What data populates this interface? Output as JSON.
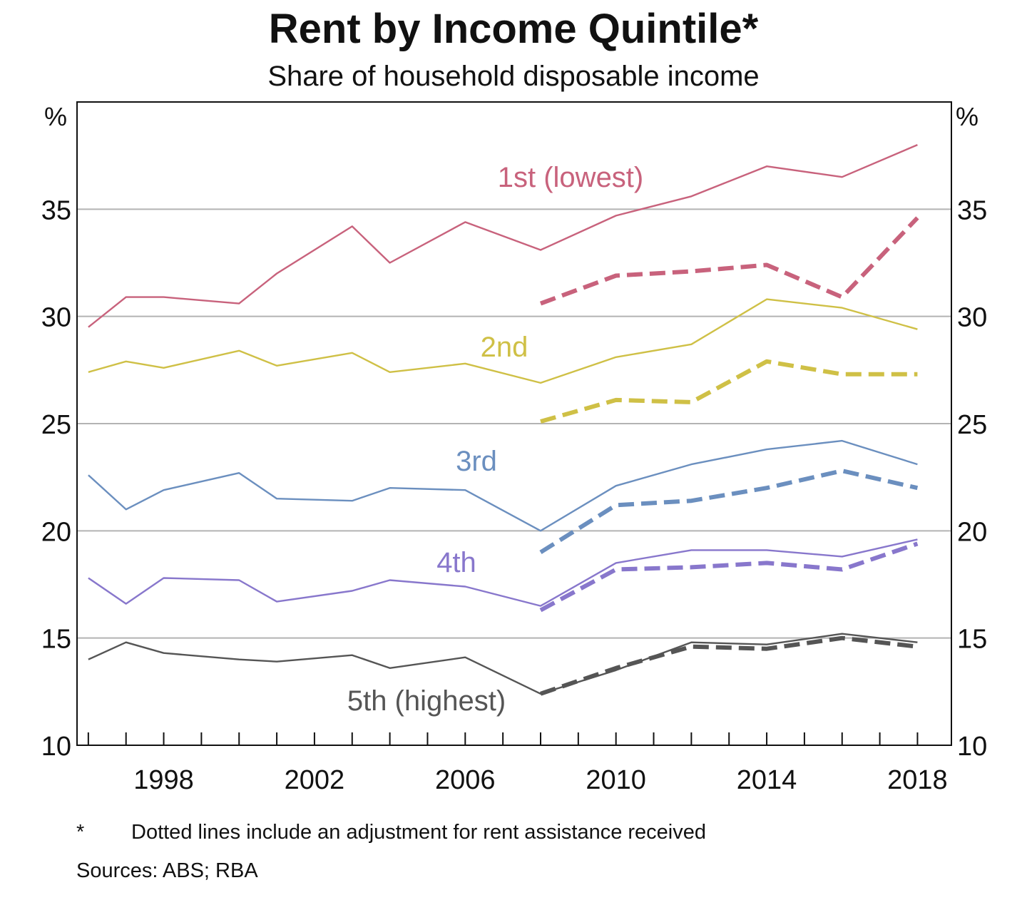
{
  "chart_data": {
    "type": "line",
    "title": "Rent by Income Quintile*",
    "subtitle": "Share of household disposable income",
    "y_unit_left": "%",
    "y_unit_right": "%",
    "ylim": [
      10,
      40
    ],
    "xlim": [
      1995.7,
      2018.9
    ],
    "y_ticks": [
      10,
      15,
      20,
      25,
      30,
      35
    ],
    "x_ticks": [
      1998,
      2002,
      2006,
      2010,
      2014,
      2018
    ],
    "x_minor_ticks": [
      1996,
      1997,
      1998,
      1999,
      2000,
      2001,
      2002,
      2003,
      2004,
      2005,
      2006,
      2007,
      2008,
      2009,
      2010,
      2011,
      2012,
      2013,
      2014,
      2015,
      2016,
      2017,
      2018
    ],
    "gridlines": "horizontal",
    "series": [
      {
        "name": "1st (lowest)",
        "color": "#c8627c",
        "style": "solid",
        "x": [
          1996,
          1997,
          1998,
          2000,
          2001,
          2003,
          2004,
          2006,
          2008,
          2010,
          2012,
          2014,
          2016,
          2018
        ],
        "y": [
          29.5,
          30.9,
          30.9,
          30.6,
          32.0,
          34.2,
          32.5,
          34.4,
          33.1,
          34.7,
          35.6,
          37.0,
          36.5,
          38.0
        ]
      },
      {
        "name": "1st (lowest)",
        "color": "#c8627c",
        "style": "dashed",
        "x": [
          2008,
          2010,
          2012,
          2014,
          2016,
          2018
        ],
        "y": [
          30.6,
          31.9,
          32.1,
          32.4,
          30.9,
          34.6
        ]
      },
      {
        "name": "2nd",
        "color": "#cfc046",
        "style": "solid",
        "x": [
          1996,
          1997,
          1998,
          2000,
          2001,
          2003,
          2004,
          2006,
          2008,
          2010,
          2012,
          2014,
          2016,
          2018
        ],
        "y": [
          27.4,
          27.9,
          27.6,
          28.4,
          27.7,
          28.3,
          27.4,
          27.8,
          26.9,
          28.1,
          28.7,
          30.8,
          30.4,
          29.4
        ]
      },
      {
        "name": "2nd",
        "color": "#cfc046",
        "style": "dashed",
        "x": [
          2008,
          2010,
          2012,
          2014,
          2016,
          2018
        ],
        "y": [
          25.1,
          26.1,
          26.0,
          27.9,
          27.3,
          27.3
        ]
      },
      {
        "name": "3rd",
        "color": "#6b8fbf",
        "style": "solid",
        "x": [
          1996,
          1997,
          1998,
          2000,
          2001,
          2003,
          2004,
          2006,
          2008,
          2010,
          2012,
          2014,
          2016,
          2018
        ],
        "y": [
          22.6,
          21.0,
          21.9,
          22.7,
          21.5,
          21.4,
          22.0,
          21.9,
          20.0,
          22.1,
          23.1,
          23.8,
          24.2,
          23.1
        ]
      },
      {
        "name": "3rd",
        "color": "#6b8fbf",
        "style": "dashed",
        "x": [
          2008,
          2010,
          2012,
          2014,
          2016,
          2018
        ],
        "y": [
          19.0,
          21.2,
          21.4,
          22.0,
          22.8,
          22.0
        ]
      },
      {
        "name": "4th",
        "color": "#8877cc",
        "style": "solid",
        "x": [
          1996,
          1997,
          1998,
          2000,
          2001,
          2003,
          2004,
          2006,
          2008,
          2010,
          2012,
          2014,
          2016,
          2018
        ],
        "y": [
          17.8,
          16.6,
          17.8,
          17.7,
          16.7,
          17.2,
          17.7,
          17.4,
          16.5,
          18.5,
          19.1,
          19.1,
          18.8,
          19.6
        ]
      },
      {
        "name": "4th",
        "color": "#8877cc",
        "style": "dashed",
        "x": [
          2008,
          2010,
          2012,
          2014,
          2016,
          2018
        ],
        "y": [
          16.3,
          18.2,
          18.3,
          18.5,
          18.2,
          19.4
        ]
      },
      {
        "name": "5th (highest)",
        "color": "#555555",
        "style": "solid",
        "x": [
          1996,
          1997,
          1998,
          2000,
          2001,
          2003,
          2004,
          2006,
          2008,
          2010,
          2012,
          2014,
          2016,
          2018
        ],
        "y": [
          14.0,
          14.8,
          14.3,
          14.0,
          13.9,
          14.2,
          13.6,
          14.1,
          12.4,
          13.5,
          14.8,
          14.7,
          15.2,
          14.8
        ]
      },
      {
        "name": "5th (highest)",
        "color": "#555555",
        "style": "dashed",
        "x": [
          2008,
          2010,
          2012,
          2014,
          2016,
          2018
        ],
        "y": [
          12.4,
          13.6,
          14.6,
          14.5,
          15.0,
          14.6
        ]
      }
    ],
    "series_labels": [
      {
        "text": "1st (lowest)",
        "color": "#c8627c"
      },
      {
        "text": "2nd",
        "color": "#cfc046"
      },
      {
        "text": "3rd",
        "color": "#6b8fbf"
      },
      {
        "text": "4th",
        "color": "#8877cc"
      },
      {
        "text": "5th (highest)",
        "color": "#555555"
      }
    ]
  },
  "footnote": {
    "marker": "*",
    "text": "Dotted lines include an adjustment for rent assistance received"
  },
  "sources": "Sources: ABS; RBA"
}
